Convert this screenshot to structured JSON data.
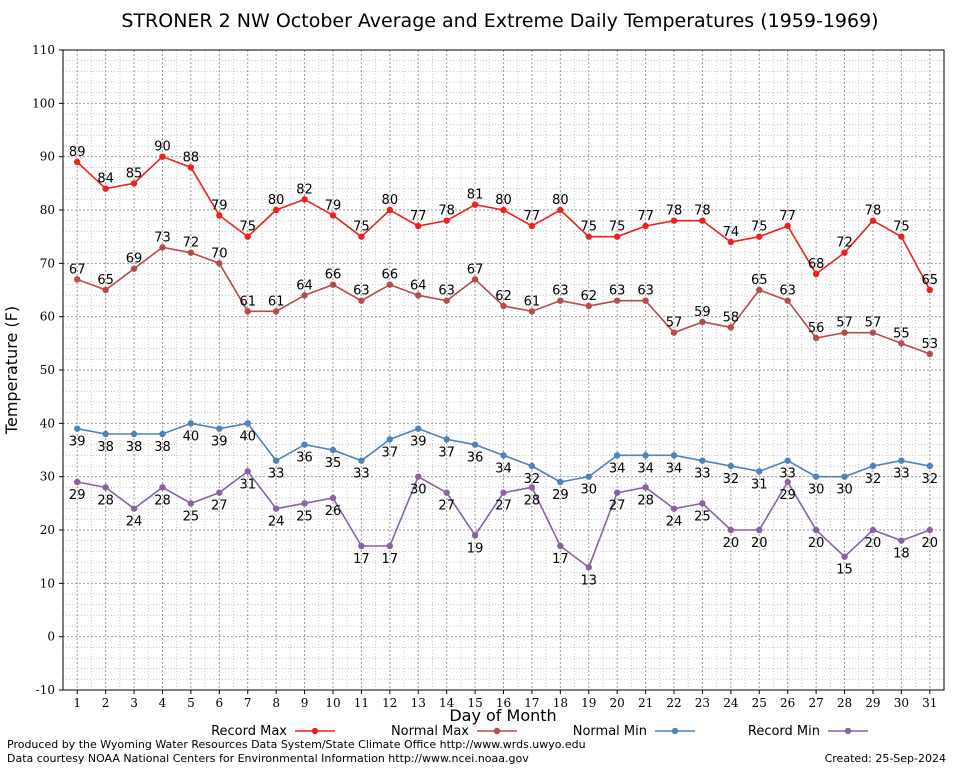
{
  "chart_data": {
    "type": "line",
    "title": "STRONER 2 NW October Average and Extreme Daily Temperatures (1959-1969)",
    "xlabel": "Day of Month",
    "ylabel": "Temperature (F)",
    "ylim": [
      -10,
      110
    ],
    "xlim": [
      0.5,
      31.5
    ],
    "yticks": [
      -10,
      0,
      10,
      20,
      30,
      40,
      50,
      60,
      70,
      80,
      90,
      100,
      110
    ],
    "x": [
      1,
      2,
      3,
      4,
      5,
      6,
      7,
      8,
      9,
      10,
      11,
      12,
      13,
      14,
      15,
      16,
      17,
      18,
      19,
      20,
      21,
      22,
      23,
      24,
      25,
      26,
      27,
      28,
      29,
      30,
      31
    ],
    "grid": true,
    "legend_position": "bottom",
    "series": [
      {
        "name": "Record Max",
        "color": "#ee2020",
        "label_position": "above",
        "values": [
          89,
          84,
          85,
          90,
          88,
          79,
          75,
          80,
          82,
          79,
          75,
          80,
          77,
          78,
          81,
          80,
          77,
          80,
          75,
          75,
          77,
          78,
          78,
          74,
          75,
          77,
          68,
          72,
          78,
          75,
          65
        ]
      },
      {
        "name": "Normal Max",
        "color": "#b74a4a",
        "label_position": "above",
        "values": [
          67,
          65,
          69,
          73,
          72,
          70,
          61,
          61,
          64,
          66,
          63,
          66,
          64,
          63,
          67,
          62,
          61,
          63,
          62,
          63,
          63,
          57,
          59,
          58,
          65,
          63,
          56,
          57,
          57,
          55,
          53
        ]
      },
      {
        "name": "Normal Min",
        "color": "#4f83b8",
        "label_position": "below",
        "values": [
          39,
          38,
          38,
          38,
          40,
          39,
          40,
          33,
          36,
          35,
          33,
          37,
          39,
          37,
          36,
          34,
          32,
          29,
          30,
          34,
          34,
          34,
          33,
          32,
          31,
          33,
          30,
          30,
          32,
          33,
          32
        ]
      },
      {
        "name": "Record Min",
        "color": "#8a62a0",
        "label_position": "below",
        "values": [
          29,
          28,
          24,
          28,
          25,
          27,
          31,
          24,
          25,
          26,
          17,
          17,
          30,
          27,
          19,
          27,
          28,
          17,
          13,
          27,
          28,
          24,
          25,
          20,
          20,
          29,
          20,
          15,
          20,
          18,
          20
        ]
      }
    ]
  },
  "footer": {
    "produced_by": "Produced by the Wyoming Water Resources Data System/State Climate Office http://www.wrds.uwyo.edu",
    "data_courtesy": "Data courtesy NOAA National Centers for Environmental Information http://www.ncei.noaa.gov",
    "created": "Created: 25-Sep-2024"
  }
}
